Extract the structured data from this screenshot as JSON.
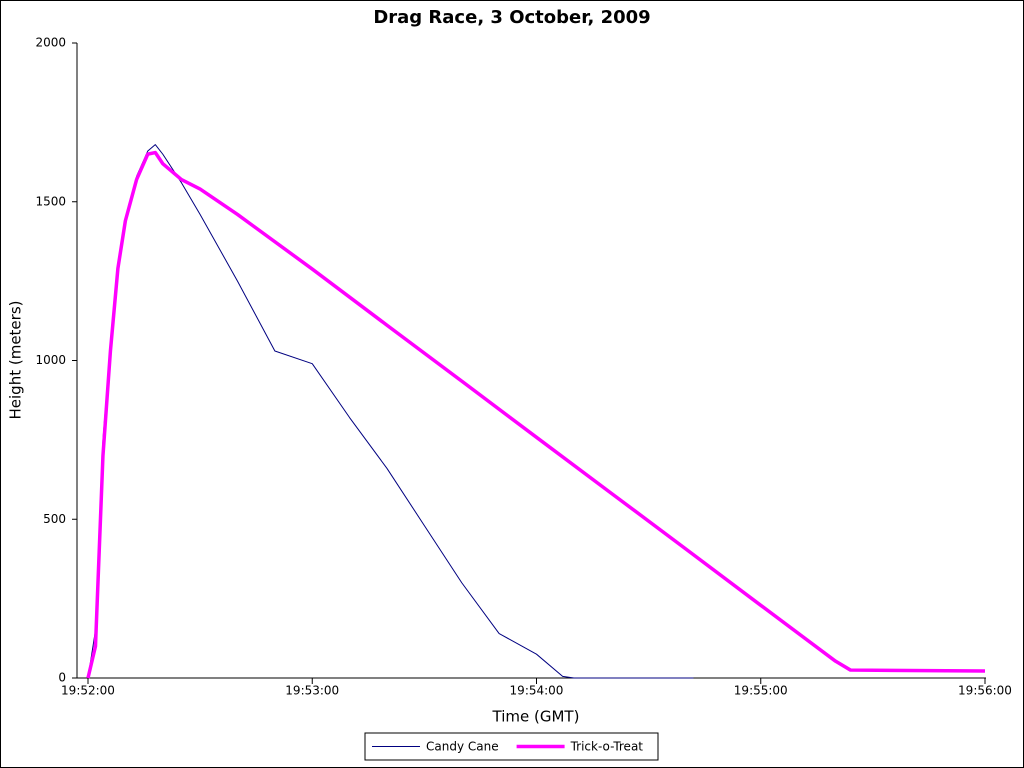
{
  "chart_data": {
    "type": "line",
    "title": "Drag Race, 3 October, 2009",
    "x_label": "Time (GMT)",
    "y_label": "Height (meters)",
    "xlim": [
      "19:52:00",
      "19:56:00"
    ],
    "xticks": [
      "19:52:00",
      "19:53:00",
      "19:54:00",
      "19:55:00",
      "19:56:00"
    ],
    "ylim": [
      0,
      2000
    ],
    "yticks": [
      0,
      500,
      1000,
      1500,
      2000
    ],
    "grid": false,
    "legend": "bottom",
    "series": [
      {
        "name": "Candy Cane",
        "color": "#000080",
        "x": [
          "19:52:00",
          "19:52:02",
          "19:52:03",
          "19:52:04",
          "19:52:06",
          "19:52:08",
          "19:52:10",
          "19:52:13",
          "19:52:16",
          "19:52:18",
          "19:52:20",
          "19:52:25",
          "19:52:30",
          "19:52:40",
          "19:52:50",
          "19:53:00",
          "19:53:10",
          "19:53:20",
          "19:53:30",
          "19:53:40",
          "19:53:50",
          "19:54:00",
          "19:54:07",
          "19:54:10",
          "19:54:42"
        ],
        "values": [
          0,
          150,
          450,
          750,
          1050,
          1300,
          1450,
          1580,
          1660,
          1680,
          1650,
          1560,
          1460,
          1250,
          1030,
          990,
          820,
          660,
          480,
          300,
          140,
          75,
          5,
          0,
          0
        ]
      },
      {
        "name": "Trick-o-Treat",
        "color": "#ff00ff",
        "x": [
          "19:52:00",
          "19:52:02",
          "19:52:03",
          "19:52:04",
          "19:52:06",
          "19:52:08",
          "19:52:10",
          "19:52:13",
          "19:52:16",
          "19:52:18",
          "19:52:20",
          "19:52:25",
          "19:52:30",
          "19:52:40",
          "19:53:00",
          "19:53:20",
          "19:53:40",
          "19:54:00",
          "19:54:20",
          "19:54:40",
          "19:55:00",
          "19:55:20",
          "19:55:24",
          "19:56:00"
        ],
        "values": [
          0,
          100,
          400,
          700,
          1030,
          1290,
          1440,
          1570,
          1650,
          1655,
          1620,
          1570,
          1540,
          1460,
          1288,
          1111,
          935,
          758,
          582,
          406,
          229,
          53,
          25,
          22
        ]
      }
    ]
  }
}
